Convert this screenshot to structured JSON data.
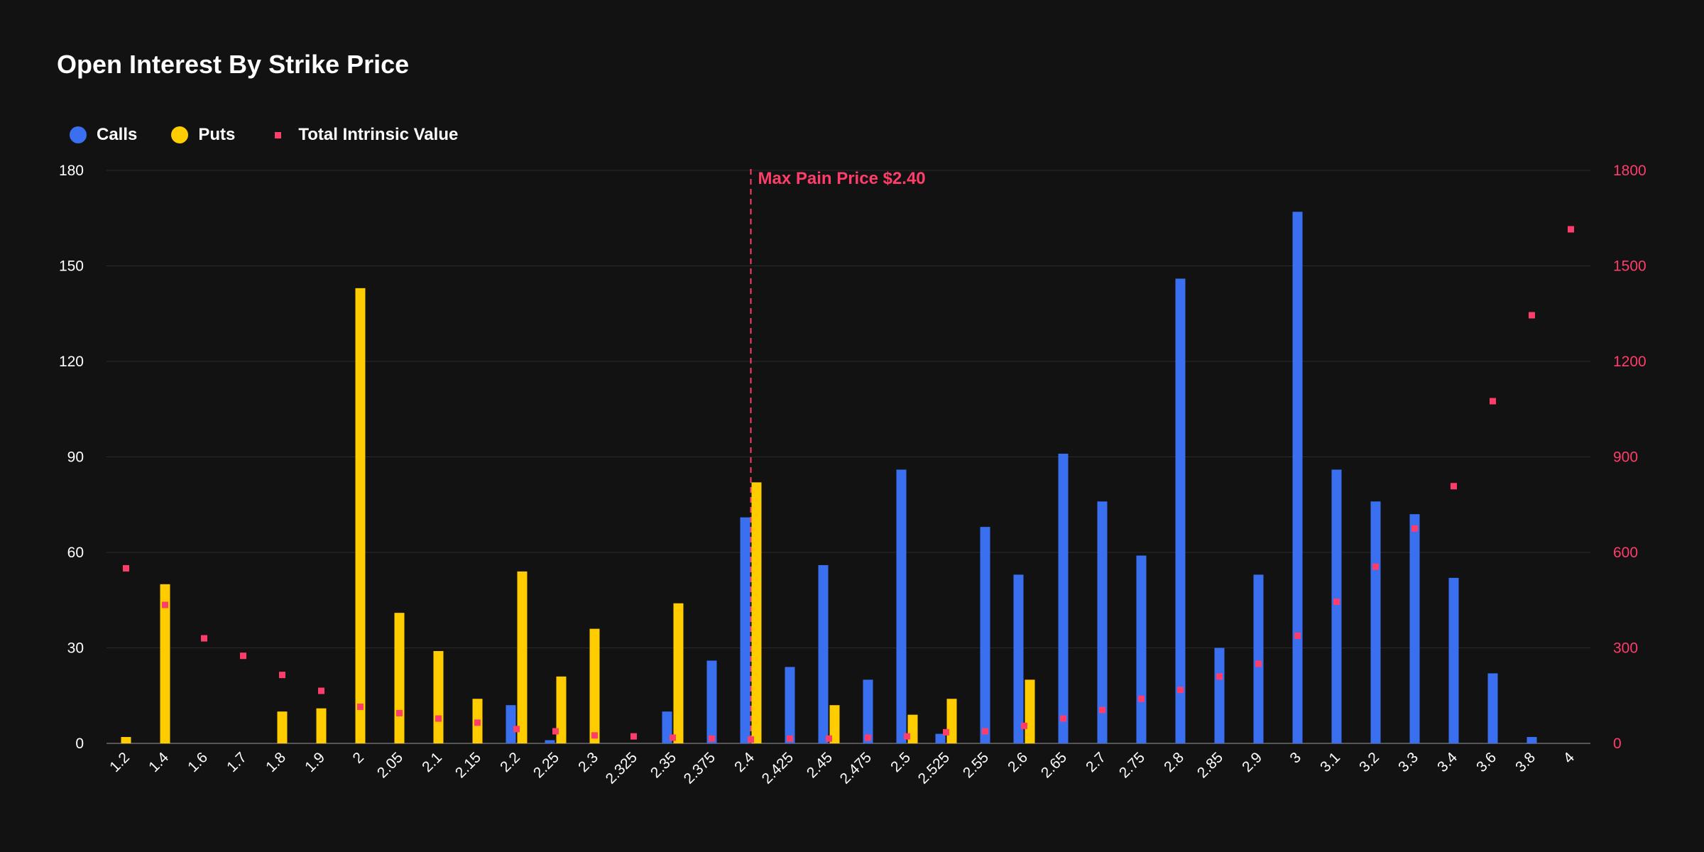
{
  "colors": {
    "calls": "#3a6ff0",
    "puts": "#ffcc00",
    "intrinsic": "#ff3d6a",
    "grid": "#2a2a2a",
    "axis": "#555555"
  },
  "legend": [
    {
      "name": "Calls",
      "shape": "circle",
      "color_key": "calls"
    },
    {
      "name": "Puts",
      "shape": "circle",
      "color_key": "puts"
    },
    {
      "name": "Total Intrinsic Value",
      "shape": "square",
      "color_key": "intrinsic"
    }
  ],
  "chart_data": {
    "type": "bar",
    "title": "Open Interest By Strike Price",
    "xlabel": "",
    "ylabel": "",
    "y_left": {
      "min": 0,
      "max": 180,
      "ticks": [
        0,
        30,
        60,
        90,
        120,
        150,
        180
      ]
    },
    "y_right": {
      "min": 0,
      "max": 1800,
      "ticks": [
        0,
        300,
        600,
        900,
        1200,
        1500,
        1800
      ]
    },
    "grid": true,
    "legend_position": "top-left",
    "categories": [
      "1.2",
      "1.4",
      "1.6",
      "1.7",
      "1.8",
      "1.9",
      "2",
      "2.05",
      "2.1",
      "2.15",
      "2.2",
      "2.25",
      "2.3",
      "2.325",
      "2.35",
      "2.375",
      "2.4",
      "2.425",
      "2.45",
      "2.475",
      "2.5",
      "2.525",
      "2.55",
      "2.6",
      "2.65",
      "2.7",
      "2.75",
      "2.8",
      "2.85",
      "2.9",
      "3",
      "3.1",
      "3.2",
      "3.3",
      "3.4",
      "3.6",
      "3.8",
      "4"
    ],
    "series": [
      {
        "name": "Calls",
        "type": "bar",
        "axis": "left",
        "color_key": "calls",
        "values": [
          0,
          0,
          0,
          0,
          0,
          0,
          0,
          0,
          0,
          0,
          12,
          1,
          0,
          0,
          10,
          26,
          71,
          24,
          56,
          20,
          86,
          3,
          68,
          53,
          91,
          76,
          59,
          146,
          30,
          53,
          167,
          86,
          76,
          72,
          52,
          22,
          2,
          0
        ]
      },
      {
        "name": "Puts",
        "type": "bar",
        "axis": "left",
        "color_key": "puts",
        "values": [
          2,
          50,
          0,
          0,
          10,
          11,
          143,
          41,
          29,
          14,
          54,
          21,
          36,
          0,
          44,
          0,
          82,
          0,
          12,
          0,
          9,
          14,
          0,
          20,
          0,
          0,
          0,
          0,
          0,
          0,
          0,
          0,
          0,
          0,
          0,
          0,
          0,
          0
        ]
      },
      {
        "name": "Total Intrinsic Value",
        "type": "scatter",
        "axis": "right",
        "color_key": "intrinsic",
        "values": [
          550,
          435,
          330,
          275,
          215,
          165,
          115,
          95,
          78,
          65,
          45,
          38,
          25,
          22,
          18,
          15,
          12,
          15,
          15,
          18,
          22,
          35,
          38,
          55,
          78,
          105,
          140,
          168,
          210,
          250,
          338,
          445,
          555,
          675,
          808,
          1075,
          1345,
          1615
        ]
      }
    ],
    "annotations": [
      {
        "text": "Max Pain Price $2.40",
        "x": "2.4",
        "style": "dashed-vertical-line"
      }
    ]
  }
}
